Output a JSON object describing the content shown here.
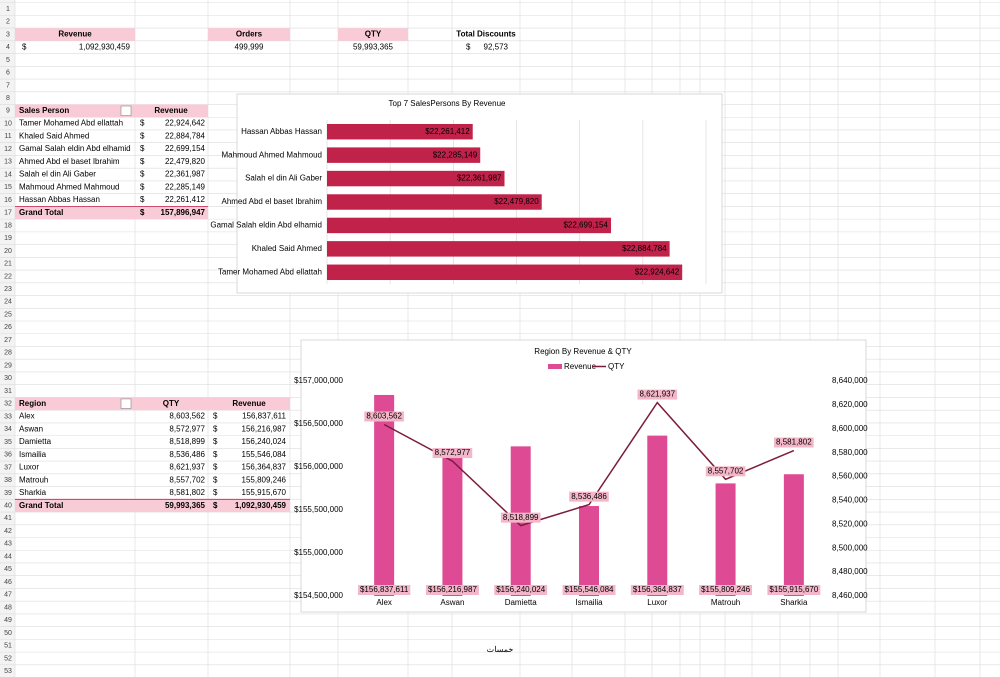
{
  "sheet": {
    "row_numbers": [
      1,
      2,
      3,
      4,
      5,
      6,
      7,
      8,
      9,
      10,
      11,
      12,
      13,
      14,
      15,
      16,
      17,
      18,
      19,
      20,
      21,
      22,
      23,
      24,
      25,
      26,
      27,
      28,
      29,
      30,
      31,
      32,
      33,
      34,
      35,
      36,
      37,
      38,
      39,
      40,
      41,
      42,
      43,
      44,
      45,
      46,
      47,
      48,
      49,
      50,
      51,
      52,
      53
    ],
    "watermark": "خمسات"
  },
  "kpis": [
    {
      "label": "Revenue",
      "currency": "$",
      "value": "1,092,930,459"
    },
    {
      "label": "Orders",
      "value": "499,999"
    },
    {
      "label": "QTY",
      "value": "59,993,365"
    },
    {
      "label": "Total Discounts",
      "currency": "$",
      "value": "92,573"
    }
  ],
  "sales_table": {
    "header": [
      "Sales Person",
      "Revenue"
    ],
    "rows": [
      [
        "Tamer Mohamed Abd ellattah",
        "$",
        "22,924,642"
      ],
      [
        "Khaled Said Ahmed",
        "$",
        "22,884,784"
      ],
      [
        "Gamal Salah eldin Abd elhamid",
        "$",
        "22,699,154"
      ],
      [
        "Ahmed Abd el baset Ibrahim",
        "$",
        "22,479,820"
      ],
      [
        "Salah el din Ali Gaber",
        "$",
        "22,361,987"
      ],
      [
        "Mahmoud Ahmed Mahmoud",
        "$",
        "22,285,149"
      ],
      [
        "Hassan Abbas Hassan",
        "$",
        "22,261,412"
      ]
    ],
    "total": [
      "Grand Total",
      "$",
      "157,896,947"
    ]
  },
  "region_table": {
    "header": [
      "Region",
      "QTY",
      "Revenue"
    ],
    "rows": [
      [
        "Alex",
        "8,603,562",
        "$",
        "156,837,611"
      ],
      [
        "Aswan",
        "8,572,977",
        "$",
        "156,216,987"
      ],
      [
        "Damietta",
        "8,518,899",
        "$",
        "156,240,024"
      ],
      [
        "Ismailia",
        "8,536,486",
        "$",
        "155,546,084"
      ],
      [
        "Luxor",
        "8,621,937",
        "$",
        "156,364,837"
      ],
      [
        "Matrouh",
        "8,557,702",
        "$",
        "155,809,246"
      ],
      [
        "Sharkia",
        "8,581,802",
        "$",
        "155,915,670"
      ]
    ],
    "total": [
      "Grand Total",
      "59,993,365",
      "$",
      "1,092,930,459"
    ]
  },
  "chart_data": [
    {
      "type": "bar",
      "orientation": "horizontal",
      "title": "Top 7 SalesPersons By Revenue",
      "categories": [
        "Hassan Abbas Hassan",
        "Mahmoud Ahmed Mahmoud",
        "Salah el din Ali Gaber",
        "Ahmed Abd el baset Ibrahim",
        "Gamal Salah eldin Abd elhamid",
        "Khaled Said Ahmed",
        "Tamer Mohamed Abd ellattah"
      ],
      "values": [
        22261412,
        22285149,
        22361987,
        22479820,
        22699154,
        22884784,
        22924642
      ],
      "value_labels": [
        "$22,261,412",
        "$22,285,149",
        "$22,361,987",
        "$22,479,820",
        "$22,699,154",
        "$22,884,784",
        "$22,924,642"
      ],
      "color": "#c0224a",
      "xlim": [
        21800000,
        23000000
      ],
      "xticks": [
        21800000,
        22000000,
        22200000,
        22400000,
        22600000,
        22800000,
        23000000
      ],
      "grid": true
    },
    {
      "type": "combo",
      "title": "Region By Revenue & QTY",
      "categories": [
        "Alex",
        "Aswan",
        "Damietta",
        "Ismailia",
        "Luxor",
        "Matrouh",
        "Sharkia"
      ],
      "series": [
        {
          "name": "Revenue",
          "type": "bar",
          "color": "#de4a93",
          "values": [
            156837611,
            156216987,
            156240024,
            155546084,
            156364837,
            155809246,
            155915670
          ],
          "value_labels": [
            "$156,837,611",
            "$156,216,987",
            "$156,240,024",
            "$155,546,084",
            "$156,364,837",
            "$155,809,246",
            "$155,915,670"
          ]
        },
        {
          "name": "QTY",
          "type": "line",
          "axis": "y2",
          "color": "#7b1c3e",
          "values": [
            8603562,
            8572977,
            8518899,
            8536486,
            8621937,
            8557702,
            8581802
          ],
          "value_labels": [
            "8,603,562",
            "8,572,977",
            "8,518,899",
            "8,536,486",
            "8,621,937",
            "8,557,702",
            "8,581,802"
          ]
        }
      ],
      "ylim": [
        154500000,
        157000000
      ],
      "yticks": [
        {
          "value": 154500000,
          "label": "$154,500,000"
        },
        {
          "value": 155000000,
          "label": "$155,000,000"
        },
        {
          "value": 155500000,
          "label": "$155,500,000"
        },
        {
          "value": 156000000,
          "label": "$156,000,000"
        },
        {
          "value": 156500000,
          "label": "$156,500,000"
        },
        {
          "value": 157000000,
          "label": "$157,000,000"
        }
      ],
      "y2lim": [
        8460000,
        8640000
      ],
      "y2ticks": [
        {
          "value": 8460000,
          "label": "8,460,000"
        },
        {
          "value": 8480000,
          "label": "8,480,000"
        },
        {
          "value": 8500000,
          "label": "8,500,000"
        },
        {
          "value": 8520000,
          "label": "8,520,000"
        },
        {
          "value": 8540000,
          "label": "8,540,000"
        },
        {
          "value": 8560000,
          "label": "8,560,000"
        },
        {
          "value": 8580000,
          "label": "8,580,000"
        },
        {
          "value": 8600000,
          "label": "8,600,000"
        },
        {
          "value": 8620000,
          "label": "8,620,000"
        },
        {
          "value": 8640000,
          "label": "8,640,000"
        }
      ],
      "legend": "top",
      "grid": false
    }
  ]
}
